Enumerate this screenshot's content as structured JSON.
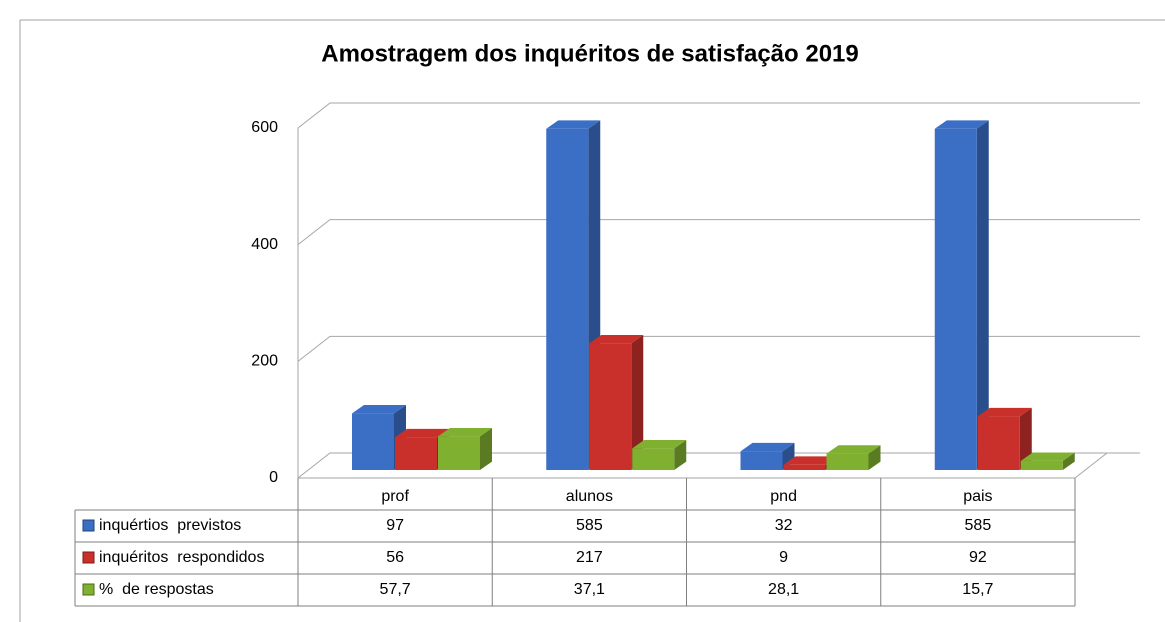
{
  "chart_data": {
    "type": "bar3d",
    "title": "Amostragem dos inquéritos de satisfação 2019",
    "categories": [
      "prof",
      "alunos",
      "pnd",
      "pais"
    ],
    "series": [
      {
        "name": "inquértios  previstos",
        "color": "#3b6fc6",
        "values": [
          97,
          585,
          32,
          585
        ]
      },
      {
        "name": "inquéritos  respondidos",
        "color": "#c9302c",
        "values": [
          56,
          217,
          9,
          92
        ]
      },
      {
        "name": "%  de respostas",
        "color": "#80b030",
        "values": [
          57.7,
          37.1,
          28.1,
          15.7
        ],
        "value_labels": [
          "57,7",
          "37,1",
          "28,1",
          "15,7"
        ]
      }
    ],
    "ylim": [
      0,
      600
    ],
    "yticks": [
      0,
      200,
      400,
      600
    ],
    "grid": true,
    "legend": "table"
  }
}
